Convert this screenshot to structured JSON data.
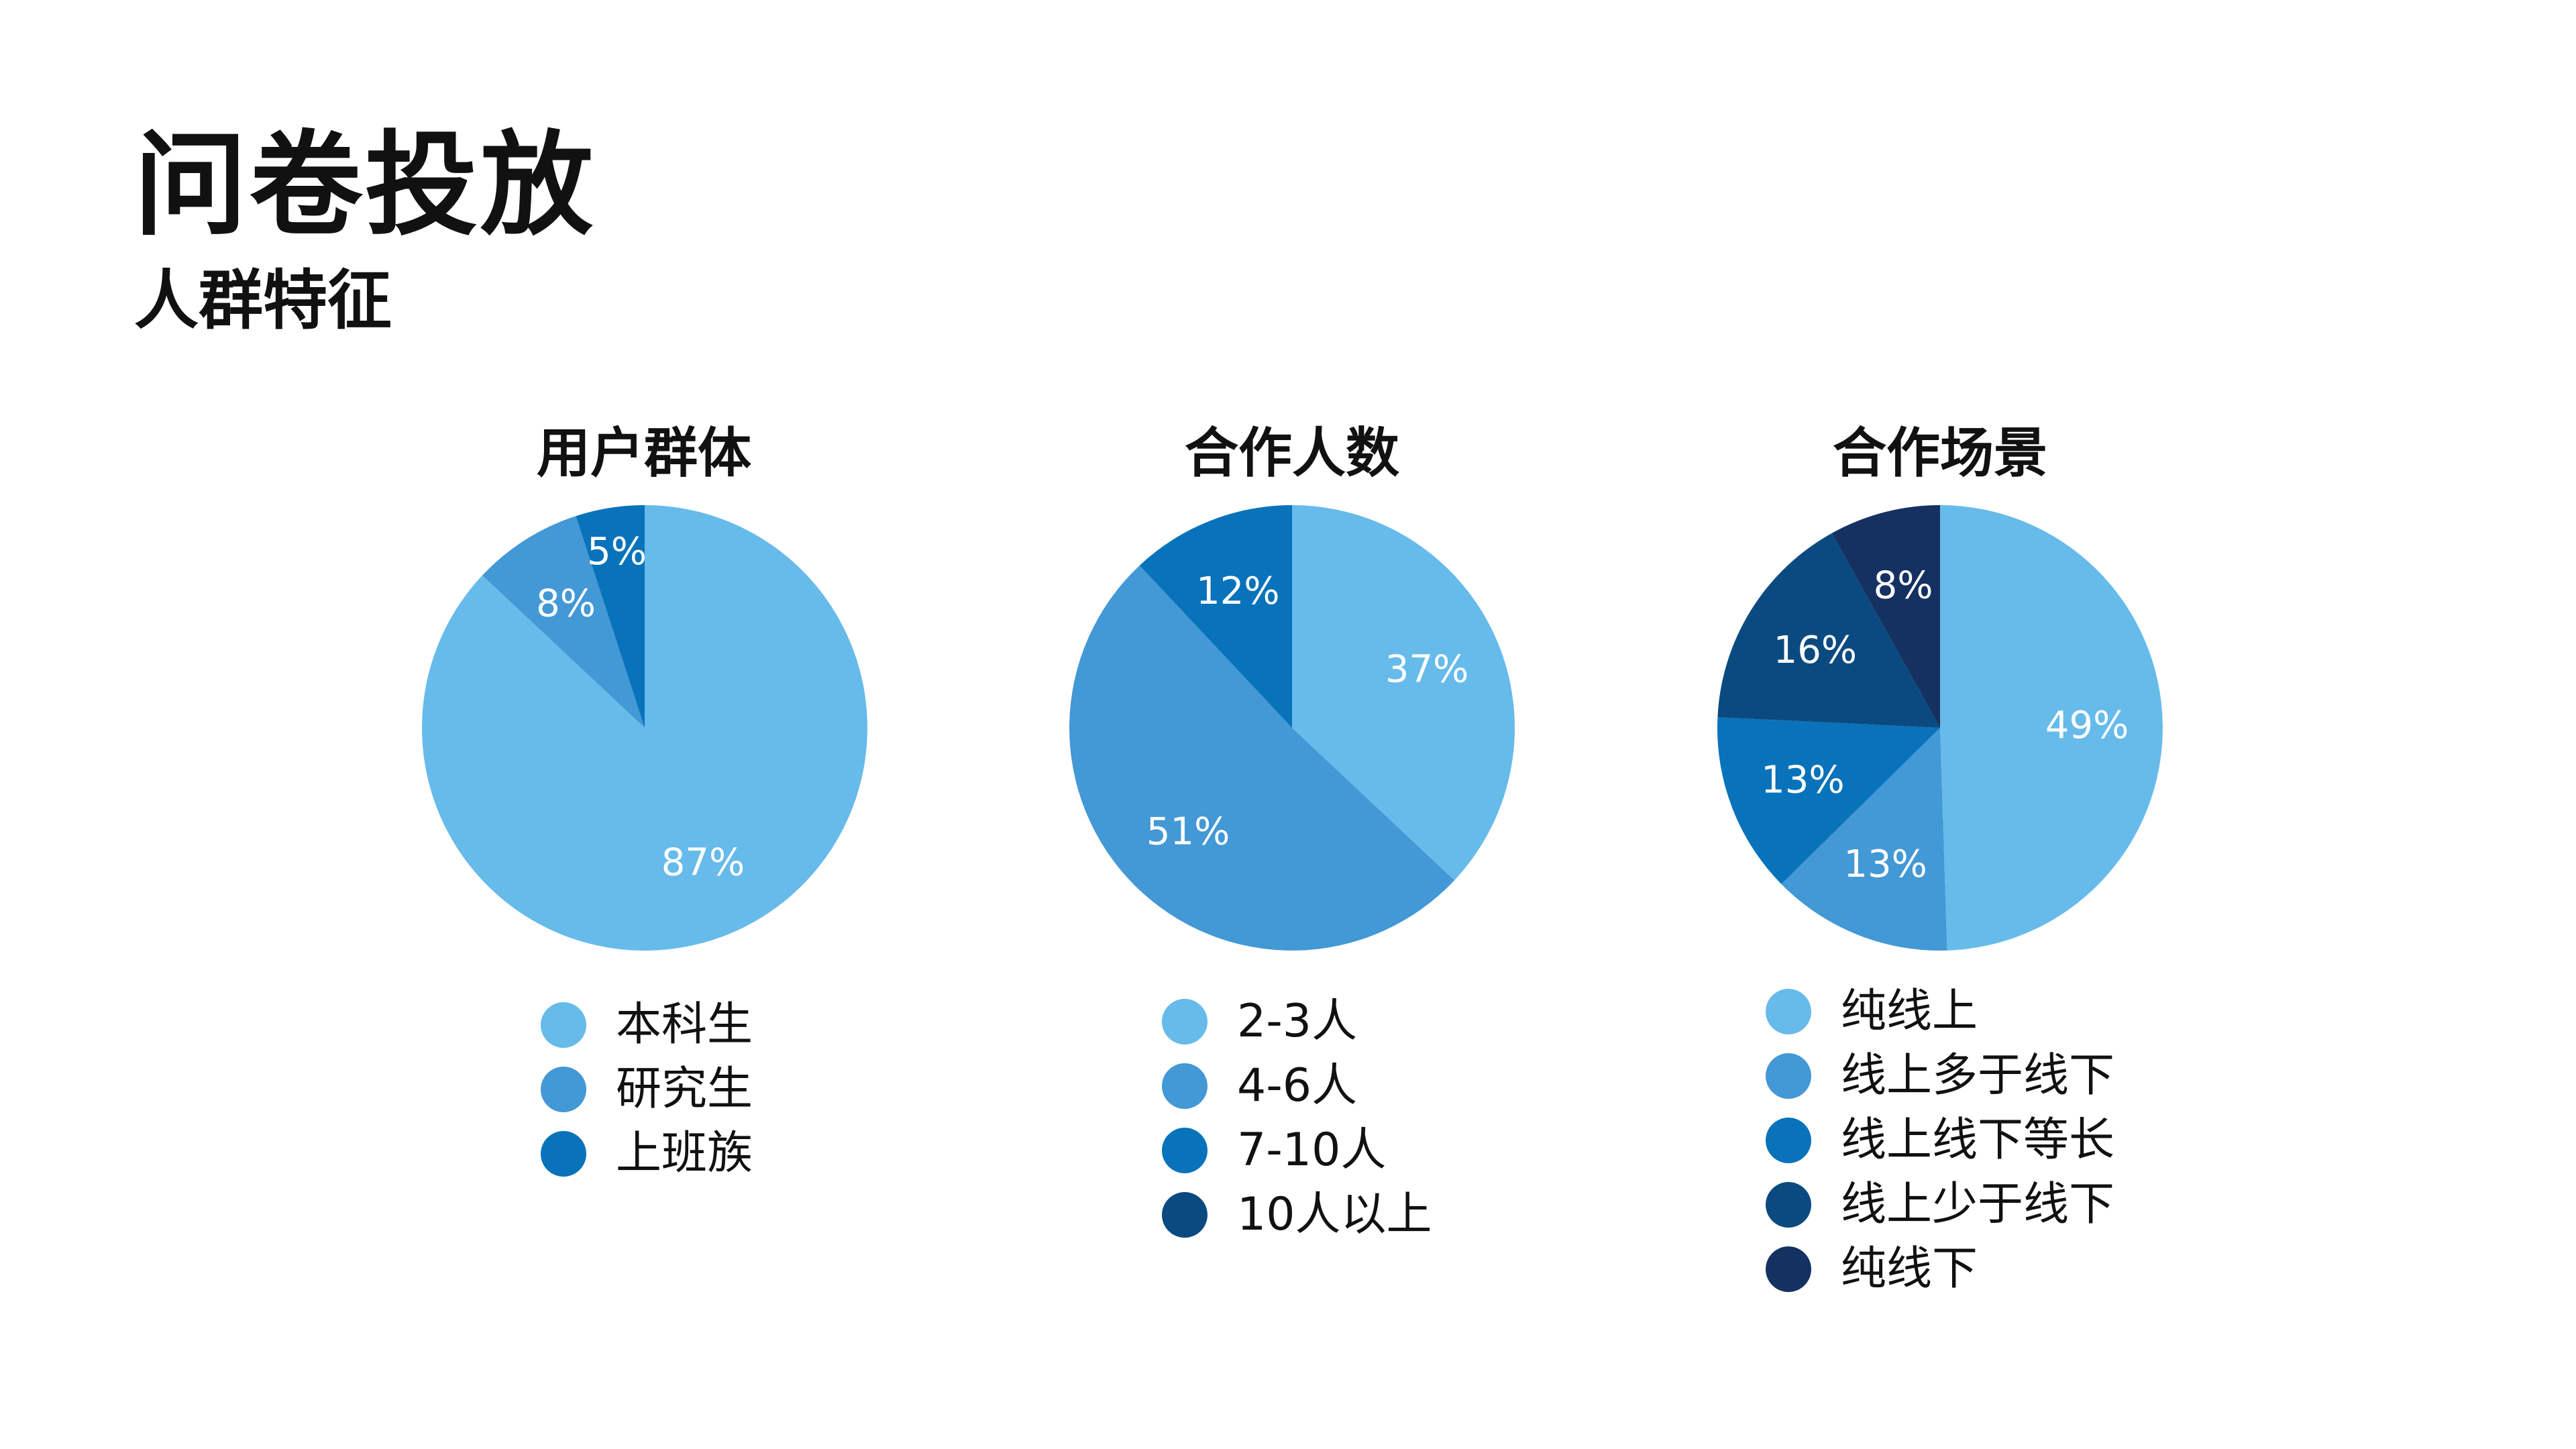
{
  "header": {
    "title": "问卷投放",
    "subtitle": "人群特征"
  },
  "colors": [
    "#66BBEA",
    "#4398D6",
    "#0873BA",
    "#0B4A80",
    "#153162"
  ],
  "chart_data": [
    {
      "type": "pie",
      "title": "用户群体",
      "categories": [
        "本科生",
        "研究生",
        "上班族"
      ],
      "values": [
        87,
        8,
        5
      ],
      "labels": [
        "87%",
        "8%",
        "5%"
      ],
      "legend": "bottom"
    },
    {
      "type": "pie",
      "title": "合作人数",
      "categories": [
        "2-3人",
        "4-6人",
        "7-10人",
        "10人以上"
      ],
      "values": [
        37,
        51,
        12,
        0
      ],
      "labels": [
        "37%",
        "51%",
        "12%",
        ""
      ],
      "legend": "bottom"
    },
    {
      "type": "pie",
      "title": "合作场景",
      "categories": [
        "纯线上",
        "线上多于线下",
        "线上线下等长",
        "线上少于线下",
        "纯线下"
      ],
      "values": [
        49,
        13,
        13,
        16,
        8
      ],
      "labels": [
        "49%",
        "13%",
        "13%",
        "16%",
        "8%"
      ],
      "legend": "bottom"
    }
  ]
}
